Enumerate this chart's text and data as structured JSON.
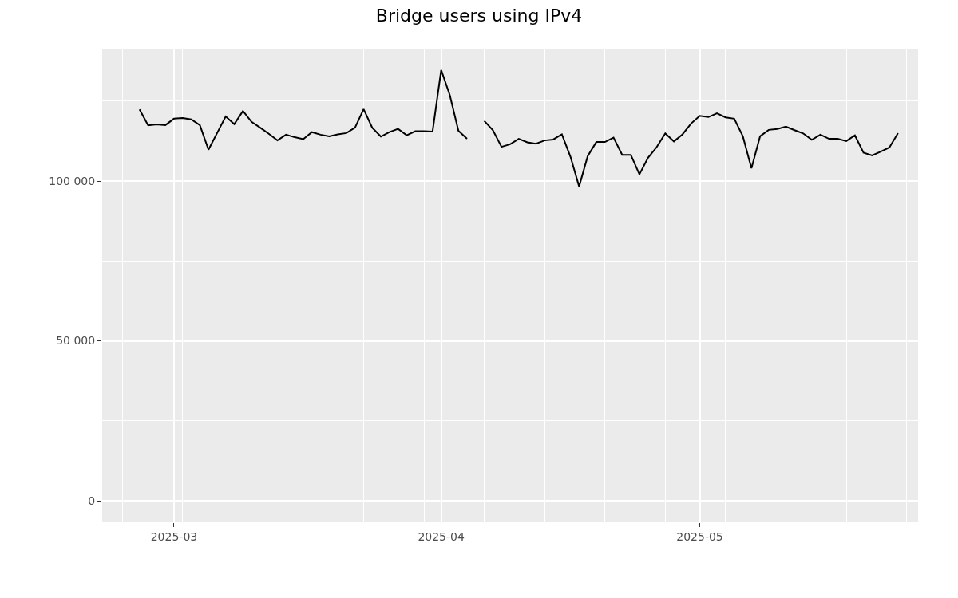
{
  "chart_data": {
    "type": "line",
    "title": "Bridge users using IPv4",
    "x": [
      "2025-02-25",
      "2025-02-26",
      "2025-02-27",
      "2025-02-28",
      "2025-03-01",
      "2025-03-02",
      "2025-03-03",
      "2025-03-04",
      "2025-03-05",
      "2025-03-06",
      "2025-03-07",
      "2025-03-08",
      "2025-03-09",
      "2025-03-10",
      "2025-03-11",
      "2025-03-12",
      "2025-03-13",
      "2025-03-14",
      "2025-03-15",
      "2025-03-16",
      "2025-03-17",
      "2025-03-18",
      "2025-03-19",
      "2025-03-20",
      "2025-03-21",
      "2025-03-22",
      "2025-03-23",
      "2025-03-24",
      "2025-03-25",
      "2025-03-26",
      "2025-03-27",
      "2025-03-28",
      "2025-03-29",
      "2025-03-30",
      "2025-03-31",
      "2025-04-01",
      "2025-04-02",
      "2025-04-03",
      "2025-04-04",
      "2025-04-05",
      "2025-04-06",
      "2025-04-07",
      "2025-04-08",
      "2025-04-09",
      "2025-04-10",
      "2025-04-11",
      "2025-04-12",
      "2025-04-13",
      "2025-04-14",
      "2025-04-15",
      "2025-04-16",
      "2025-04-17",
      "2025-04-18",
      "2025-04-19",
      "2025-04-20",
      "2025-04-21",
      "2025-04-22",
      "2025-04-23",
      "2025-04-24",
      "2025-04-25",
      "2025-04-26",
      "2025-04-27",
      "2025-04-28",
      "2025-04-29",
      "2025-04-30",
      "2025-05-01",
      "2025-05-02",
      "2025-05-03",
      "2025-05-04",
      "2025-05-05",
      "2025-05-06",
      "2025-05-07",
      "2025-05-08",
      "2025-05-09",
      "2025-05-10",
      "2025-05-11",
      "2025-05-12",
      "2025-05-13",
      "2025-05-14",
      "2025-05-15",
      "2025-05-16",
      "2025-05-17",
      "2025-05-18",
      "2025-05-19",
      "2025-05-20",
      "2025-05-21",
      "2025-05-22",
      "2025-05-23",
      "2025-05-24"
    ],
    "series": [
      {
        "color": "#000000",
        "values": [
          122400,
          117400,
          117700,
          117500,
          119500,
          119700,
          119300,
          117500,
          109800,
          115000,
          120200,
          117800,
          121900,
          118500,
          116700,
          114800,
          112700,
          114500,
          113700,
          113100,
          115300,
          114500,
          114000,
          114600,
          115000,
          116700,
          122500,
          116700,
          113900,
          115300,
          116300,
          114300,
          115600,
          115600,
          115500,
          134700,
          126900,
          115700,
          113200,
          null,
          118800,
          115900,
          110700,
          111500,
          113200,
          112100,
          111700,
          112700,
          113000,
          114600,
          107600,
          98300,
          107800,
          112200,
          112200,
          113600,
          108200,
          108200,
          102100,
          107300,
          110600,
          114900,
          112400,
          114600,
          118000,
          120400,
          120000,
          121200,
          119900,
          119500,
          114000,
          104000,
          114000,
          116000,
          116300,
          117000,
          115900,
          114900,
          112900,
          114500,
          113200,
          113200,
          112500,
          114300,
          108900,
          108000,
          109200,
          110500,
          115000
        ]
      }
    ],
    "xlim": [
      "2025-02-20T16:00",
      "2025-05-26T08:00"
    ],
    "xticks": [
      {
        "value": "2025-02-23",
        "label": null
      },
      {
        "value": "2025-03-01",
        "label": "2025-03"
      },
      {
        "value": "2025-03-02",
        "label": null
      },
      {
        "value": "2025-03-09",
        "label": null
      },
      {
        "value": "2025-03-16",
        "label": null
      },
      {
        "value": "2025-03-23",
        "label": null
      },
      {
        "value": "2025-03-30",
        "label": null
      },
      {
        "value": "2025-04-01",
        "label": "2025-04"
      },
      {
        "value": "2025-04-06",
        "label": null
      },
      {
        "value": "2025-04-13",
        "label": null
      },
      {
        "value": "2025-04-20",
        "label": null
      },
      {
        "value": "2025-04-27",
        "label": null
      },
      {
        "value": "2025-05-01",
        "label": "2025-05"
      },
      {
        "value": "2025-05-04",
        "label": null
      },
      {
        "value": "2025-05-11",
        "label": null
      },
      {
        "value": "2025-05-18",
        "label": null
      },
      {
        "value": "2025-05-25",
        "label": null
      }
    ],
    "ylim": [
      -6700,
      141400
    ],
    "yticks": [
      0,
      {
        "value": 25000,
        "label": null
      },
      {
        "value": 50000,
        "label": "50 000"
      },
      {
        "value": 75000,
        "label": null
      },
      {
        "value": 100000,
        "label": "100 000"
      },
      {
        "value": 125000,
        "label": null
      }
    ],
    "grid": true,
    "line_style": "solid",
    "marker": "none"
  }
}
